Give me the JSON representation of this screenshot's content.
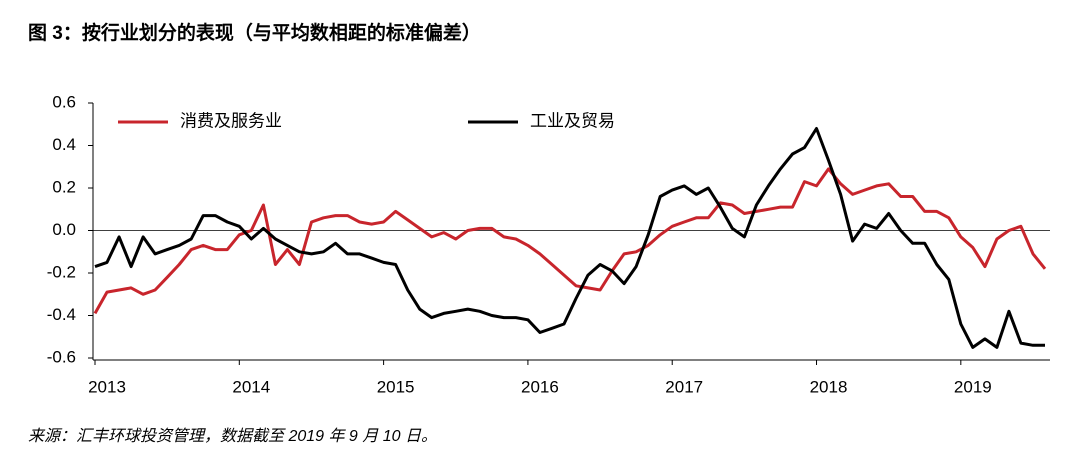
{
  "chart_data": {
    "type": "line",
    "title": "图 3：按行业划分的表现（与平均数相距的标准偏差）",
    "source": "来源：汇丰环球投资管理，数据截至 2019 年 9 月 10 日。",
    "categories": [
      "2013",
      null,
      null,
      null,
      null,
      null,
      null,
      null,
      null,
      null,
      null,
      null,
      "2014",
      null,
      null,
      null,
      null,
      null,
      null,
      null,
      null,
      null,
      null,
      null,
      "2015",
      null,
      null,
      null,
      null,
      null,
      null,
      null,
      null,
      null,
      null,
      null,
      "2016",
      null,
      null,
      null,
      null,
      null,
      null,
      null,
      null,
      null,
      null,
      null,
      "2017",
      null,
      null,
      null,
      null,
      null,
      null,
      null,
      null,
      null,
      null,
      null,
      "2018",
      null,
      null,
      null,
      null,
      null,
      null,
      null,
      null,
      null,
      null,
      null,
      "2019",
      null,
      null,
      null,
      null,
      null,
      null,
      null
    ],
    "series": [
      {
        "name": "消费及服务业",
        "color": "#c8252c",
        "values": [
          -0.39,
          -0.29,
          -0.28,
          -0.27,
          -0.3,
          -0.28,
          -0.22,
          -0.16,
          -0.09,
          -0.07,
          -0.09,
          -0.09,
          -0.02,
          0.0,
          0.12,
          -0.16,
          -0.09,
          -0.16,
          0.04,
          0.06,
          0.07,
          0.07,
          0.04,
          0.03,
          0.04,
          0.09,
          0.05,
          0.01,
          -0.03,
          -0.01,
          -0.04,
          0.0,
          0.01,
          0.01,
          -0.03,
          -0.04,
          -0.07,
          -0.11,
          -0.16,
          -0.21,
          -0.26,
          -0.27,
          -0.28,
          -0.19,
          -0.11,
          -0.1,
          -0.07,
          -0.02,
          0.02,
          0.04,
          0.06,
          0.06,
          0.13,
          0.12,
          0.08,
          0.09,
          0.1,
          0.11,
          0.11,
          0.23,
          0.21,
          0.29,
          0.22,
          0.17,
          0.19,
          0.21,
          0.22,
          0.16,
          0.16,
          0.09,
          0.09,
          0.06,
          -0.03,
          -0.08,
          -0.17,
          -0.04,
          0.0,
          0.02,
          -0.11,
          -0.18
        ]
      },
      {
        "name": "工业及贸易",
        "color": "#000000",
        "values": [
          -0.17,
          -0.15,
          -0.03,
          -0.17,
          -0.03,
          -0.11,
          -0.09,
          -0.07,
          -0.04,
          0.07,
          0.07,
          0.04,
          0.02,
          -0.04,
          0.01,
          -0.04,
          -0.07,
          -0.1,
          -0.11,
          -0.1,
          -0.06,
          -0.11,
          -0.11,
          -0.13,
          -0.15,
          -0.16,
          -0.28,
          -0.37,
          -0.41,
          -0.39,
          -0.38,
          -0.37,
          -0.38,
          -0.4,
          -0.41,
          -0.41,
          -0.42,
          -0.48,
          -0.46,
          -0.44,
          -0.32,
          -0.21,
          -0.16,
          -0.19,
          -0.25,
          -0.17,
          -0.02,
          0.16,
          0.19,
          0.21,
          0.17,
          0.2,
          0.11,
          0.01,
          -0.03,
          0.12,
          0.21,
          0.29,
          0.36,
          0.39,
          0.48,
          0.33,
          0.17,
          -0.05,
          0.03,
          0.01,
          0.08,
          0.0,
          -0.06,
          -0.06,
          -0.16,
          -0.23,
          -0.44,
          -0.55,
          -0.51,
          -0.55,
          -0.38,
          -0.53,
          -0.54,
          -0.54
        ]
      }
    ],
    "ylim": [
      -0.6,
      0.6
    ],
    "yticks": [
      -0.6,
      -0.4,
      -0.2,
      {
        "value": 0,
        "label": "0.0"
      },
      0.2,
      0.4,
      0.6
    ]
  }
}
